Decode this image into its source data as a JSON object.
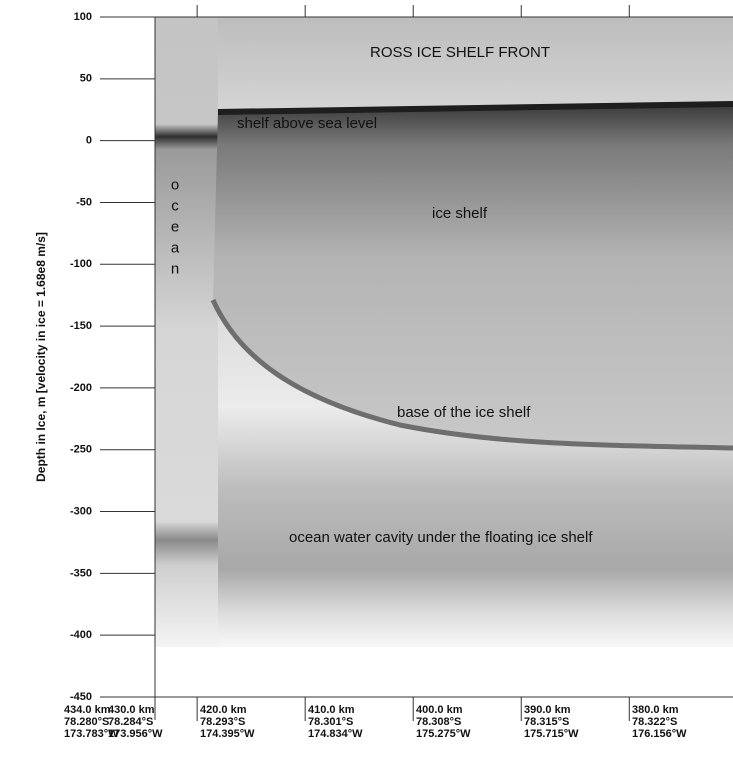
{
  "chart_data": {
    "type": "radargram",
    "title": "ROSS ICE SHELF FRONT",
    "y_label": "Depth in Ice, m [velocity in ice = 1.68e8 m/s]",
    "ylim": [
      -450,
      100
    ],
    "yticks": [
      100,
      50,
      0,
      -50,
      -100,
      -150,
      -200,
      -250,
      -300,
      -350,
      -400,
      -450
    ],
    "xlim": [
      423.9,
      370.4
    ],
    "xticks": [
      {
        "value": 434,
        "label": "434.0 km",
        "lat": "78.280°S",
        "lon": "173.783°W"
      },
      {
        "value": 430,
        "label": "430.0 km",
        "lat": "78.284°S",
        "lon": "173.956°W"
      },
      {
        "value": 420,
        "label": "420.0 km",
        "lat": "78.293°S",
        "lon": "174.395°W"
      },
      {
        "value": 410,
        "label": "410.0 km",
        "lat": "78.301°S",
        "lon": "174.834°W"
      },
      {
        "value": 400,
        "label": "400.0 km",
        "lat": "78.308°S",
        "lon": "175.275°W"
      },
      {
        "value": 390,
        "label": "390.0 km",
        "lat": "78.315°S",
        "lon": "175.715°W"
      },
      {
        "value": 380,
        "label": "380.0 km",
        "lat": "78.322°S",
        "lon": "176.156°W"
      }
    ],
    "annotations": [
      {
        "text": "shelf above sea level"
      },
      {
        "text": "ocean"
      },
      {
        "text": "ice shelf"
      },
      {
        "text": "base of the ice shelf"
      },
      {
        "text": "ocean water cavity under the floating ice shelf"
      }
    ]
  }
}
